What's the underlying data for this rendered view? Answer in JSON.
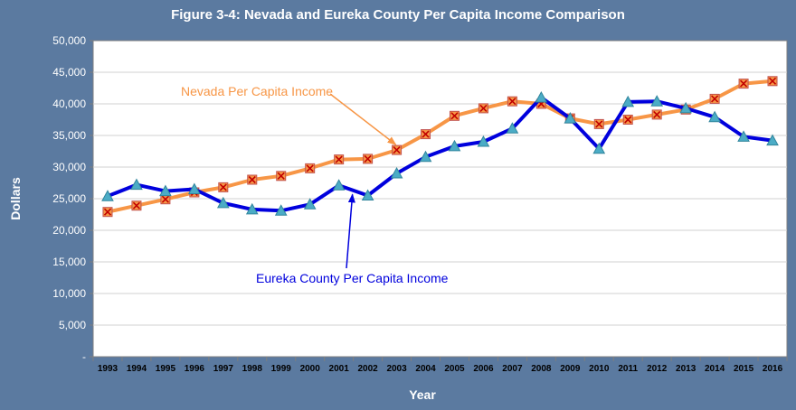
{
  "chart_data": {
    "type": "line",
    "title": "Figure 3-4: Nevada and Eureka County Per Capita Income Comparison",
    "xlabel": "Year",
    "ylabel": "Dollars",
    "ylim": [
      0,
      50000
    ],
    "y_ticks": [
      "-",
      "5,000",
      "10,000",
      "15,000",
      "20,000",
      "25,000",
      "30,000",
      "35,000",
      "40,000",
      "45,000",
      "50,000"
    ],
    "categories": [
      "1993",
      "1994",
      "1995",
      "1996",
      "1997",
      "1998",
      "1999",
      "2000",
      "2001",
      "2002",
      "2003",
      "2004",
      "2005",
      "2006",
      "2007",
      "2008",
      "2009",
      "2010",
      "2011",
      "2012",
      "2013",
      "2014",
      "2015",
      "2016"
    ],
    "grid": true,
    "series": [
      {
        "name": "Nevada Per Capita Income",
        "color": "#f79646",
        "marker": "x-box",
        "values": [
          22900,
          23900,
          24900,
          26000,
          26800,
          28000,
          28600,
          29800,
          31200,
          31300,
          32700,
          35200,
          38100,
          39300,
          40400,
          40000,
          37700,
          36800,
          37500,
          38300,
          39100,
          40800,
          43200,
          43600
        ]
      },
      {
        "name": "Eureka County Per Capita Income",
        "color": "#0000dd",
        "marker": "triangle",
        "values": [
          25400,
          27200,
          26200,
          26500,
          24300,
          23300,
          23100,
          24100,
          27100,
          25500,
          29000,
          31600,
          33300,
          34000,
          36100,
          41000,
          37700,
          32900,
          40300,
          40400,
          39300,
          37900,
          34800,
          34200
        ]
      }
    ],
    "annotations": [
      {
        "text": "Nevada Per Capita Income",
        "color": "#f79646",
        "points_to": {
          "x": "2003",
          "y": 32700
        }
      },
      {
        "text": "Eureka County Per Capita Income",
        "color": "#0000dd",
        "points_to": {
          "x": "2001",
          "y": 27100
        }
      }
    ]
  }
}
